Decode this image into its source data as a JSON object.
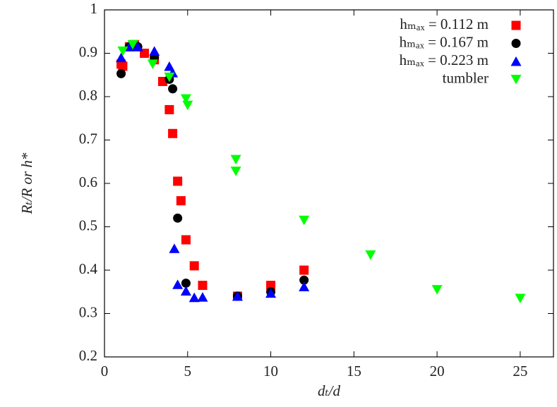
{
  "chart_data": {
    "type": "scatter",
    "x_label": "dₜ/d",
    "y_label": "Rₜ/R or h*",
    "xlim": [
      0,
      27
    ],
    "ylim": [
      0.2,
      1
    ],
    "xticks": [
      0,
      5,
      10,
      15,
      20,
      25
    ],
    "yticks": [
      0.2,
      0.3,
      0.4,
      0.5,
      0.6,
      0.7,
      0.8,
      0.9,
      1
    ],
    "legend": "top-right",
    "series": [
      {
        "name": "hₘₐₓ = 0.112 m",
        "color": "#ff0000",
        "marker": "square",
        "x": [
          1,
          1.1,
          1.5,
          1.8,
          2.4,
          3,
          3.5,
          3.9,
          4.1,
          4.4,
          4.6,
          4.9,
          5.4,
          5.9,
          8,
          10,
          12
        ],
        "values": [
          0.875,
          0.87,
          0.915,
          0.92,
          0.9,
          0.885,
          0.835,
          0.77,
          0.715,
          0.605,
          0.56,
          0.47,
          0.41,
          0.365,
          0.34,
          0.365,
          0.4
        ]
      },
      {
        "name": "hₘₐₓ = 0.167 m",
        "color": "#000000",
        "marker": "circle",
        "x": [
          1,
          1.5,
          2,
          3,
          3.9,
          4.1,
          4.4,
          4.9,
          8,
          10,
          12
        ],
        "values": [
          0.853,
          0.915,
          0.915,
          0.89,
          0.84,
          0.818,
          0.52,
          0.37,
          0.34,
          0.35,
          0.377
        ]
      },
      {
        "name": "hₘₐₓ = 0.223 m",
        "color": "#0000ff",
        "marker": "triangle",
        "x": [
          1,
          1.5,
          2,
          3,
          3.9,
          4.1,
          4.2,
          4.4,
          4.9,
          5.4,
          5.9,
          8,
          10,
          12
        ],
        "values": [
          0.89,
          0.915,
          0.915,
          0.905,
          0.87,
          0.855,
          0.45,
          0.367,
          0.352,
          0.337,
          0.338,
          0.34,
          0.347,
          0.362
        ]
      },
      {
        "name": "tumbler",
        "color": "#00ff00",
        "marker": "triangle-down",
        "x": [
          1.1,
          1.7,
          2.9,
          3.9,
          4.9,
          5,
          7.9,
          7.9,
          12,
          16,
          20,
          25
        ],
        "values": [
          0.905,
          0.92,
          0.875,
          0.845,
          0.795,
          0.78,
          0.655,
          0.628,
          0.515,
          0.435,
          0.355,
          0.335
        ]
      }
    ]
  }
}
